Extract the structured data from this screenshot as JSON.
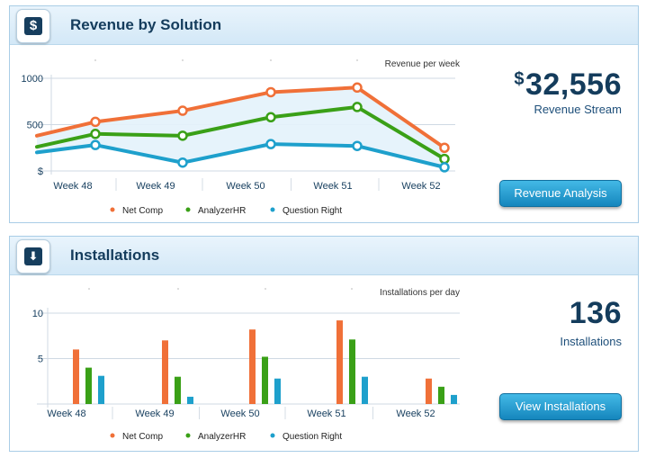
{
  "revenue": {
    "title": "Revenue by Solution",
    "icon": "dollar-icon",
    "icon_glyph": "$",
    "stat_currency": "$",
    "stat_value": "32,556",
    "stat_label": "Revenue Stream",
    "button_label": "Revenue Analysis"
  },
  "installs": {
    "title": "Installations",
    "icon": "download-arrow-icon",
    "icon_glyph": "⬇",
    "stat_value": "136",
    "stat_label": "Installations",
    "button_label": "View Installations"
  },
  "colors": {
    "net_comp": "#f07038",
    "analyzer_hr": "#3aa017",
    "question_right": "#1ea0cc",
    "navy": "#143c5c"
  },
  "chart_data": [
    {
      "type": "line",
      "title": "Revenue per week",
      "categories": [
        "Week 48",
        "Week 49",
        "Week 50",
        "Week 51",
        "Week 52"
      ],
      "yticks": [
        "1000",
        "500",
        "$"
      ],
      "ylim": [
        0,
        1000
      ],
      "legend_position": "bottom",
      "series": [
        {
          "name": "Net Comp",
          "values": [
            380,
            530,
            650,
            850,
            900,
            250
          ]
        },
        {
          "name": "AnalyzerHR",
          "values": [
            260,
            400,
            380,
            580,
            690,
            130
          ]
        },
        {
          "name": "Question Right",
          "values": [
            200,
            280,
            90,
            290,
            270,
            40
          ]
        }
      ],
      "x": [
        47.5,
        48,
        49,
        50,
        51,
        52
      ]
    },
    {
      "type": "bar",
      "title": "Installations per day",
      "categories": [
        "Week 48",
        "Week 49",
        "Week 50",
        "Week 51",
        "Week 52"
      ],
      "yticks": [
        "10",
        "5"
      ],
      "ylim": [
        0,
        10
      ],
      "legend_position": "bottom",
      "series": [
        {
          "name": "Net Comp",
          "values": [
            6,
            7,
            8.2,
            9.2,
            2.8
          ]
        },
        {
          "name": "AnalyzerHR",
          "values": [
            4,
            3,
            5.2,
            7.1,
            1.9
          ]
        },
        {
          "name": "Question Right",
          "values": [
            3.1,
            0.8,
            2.8,
            3,
            1
          ]
        }
      ]
    }
  ]
}
